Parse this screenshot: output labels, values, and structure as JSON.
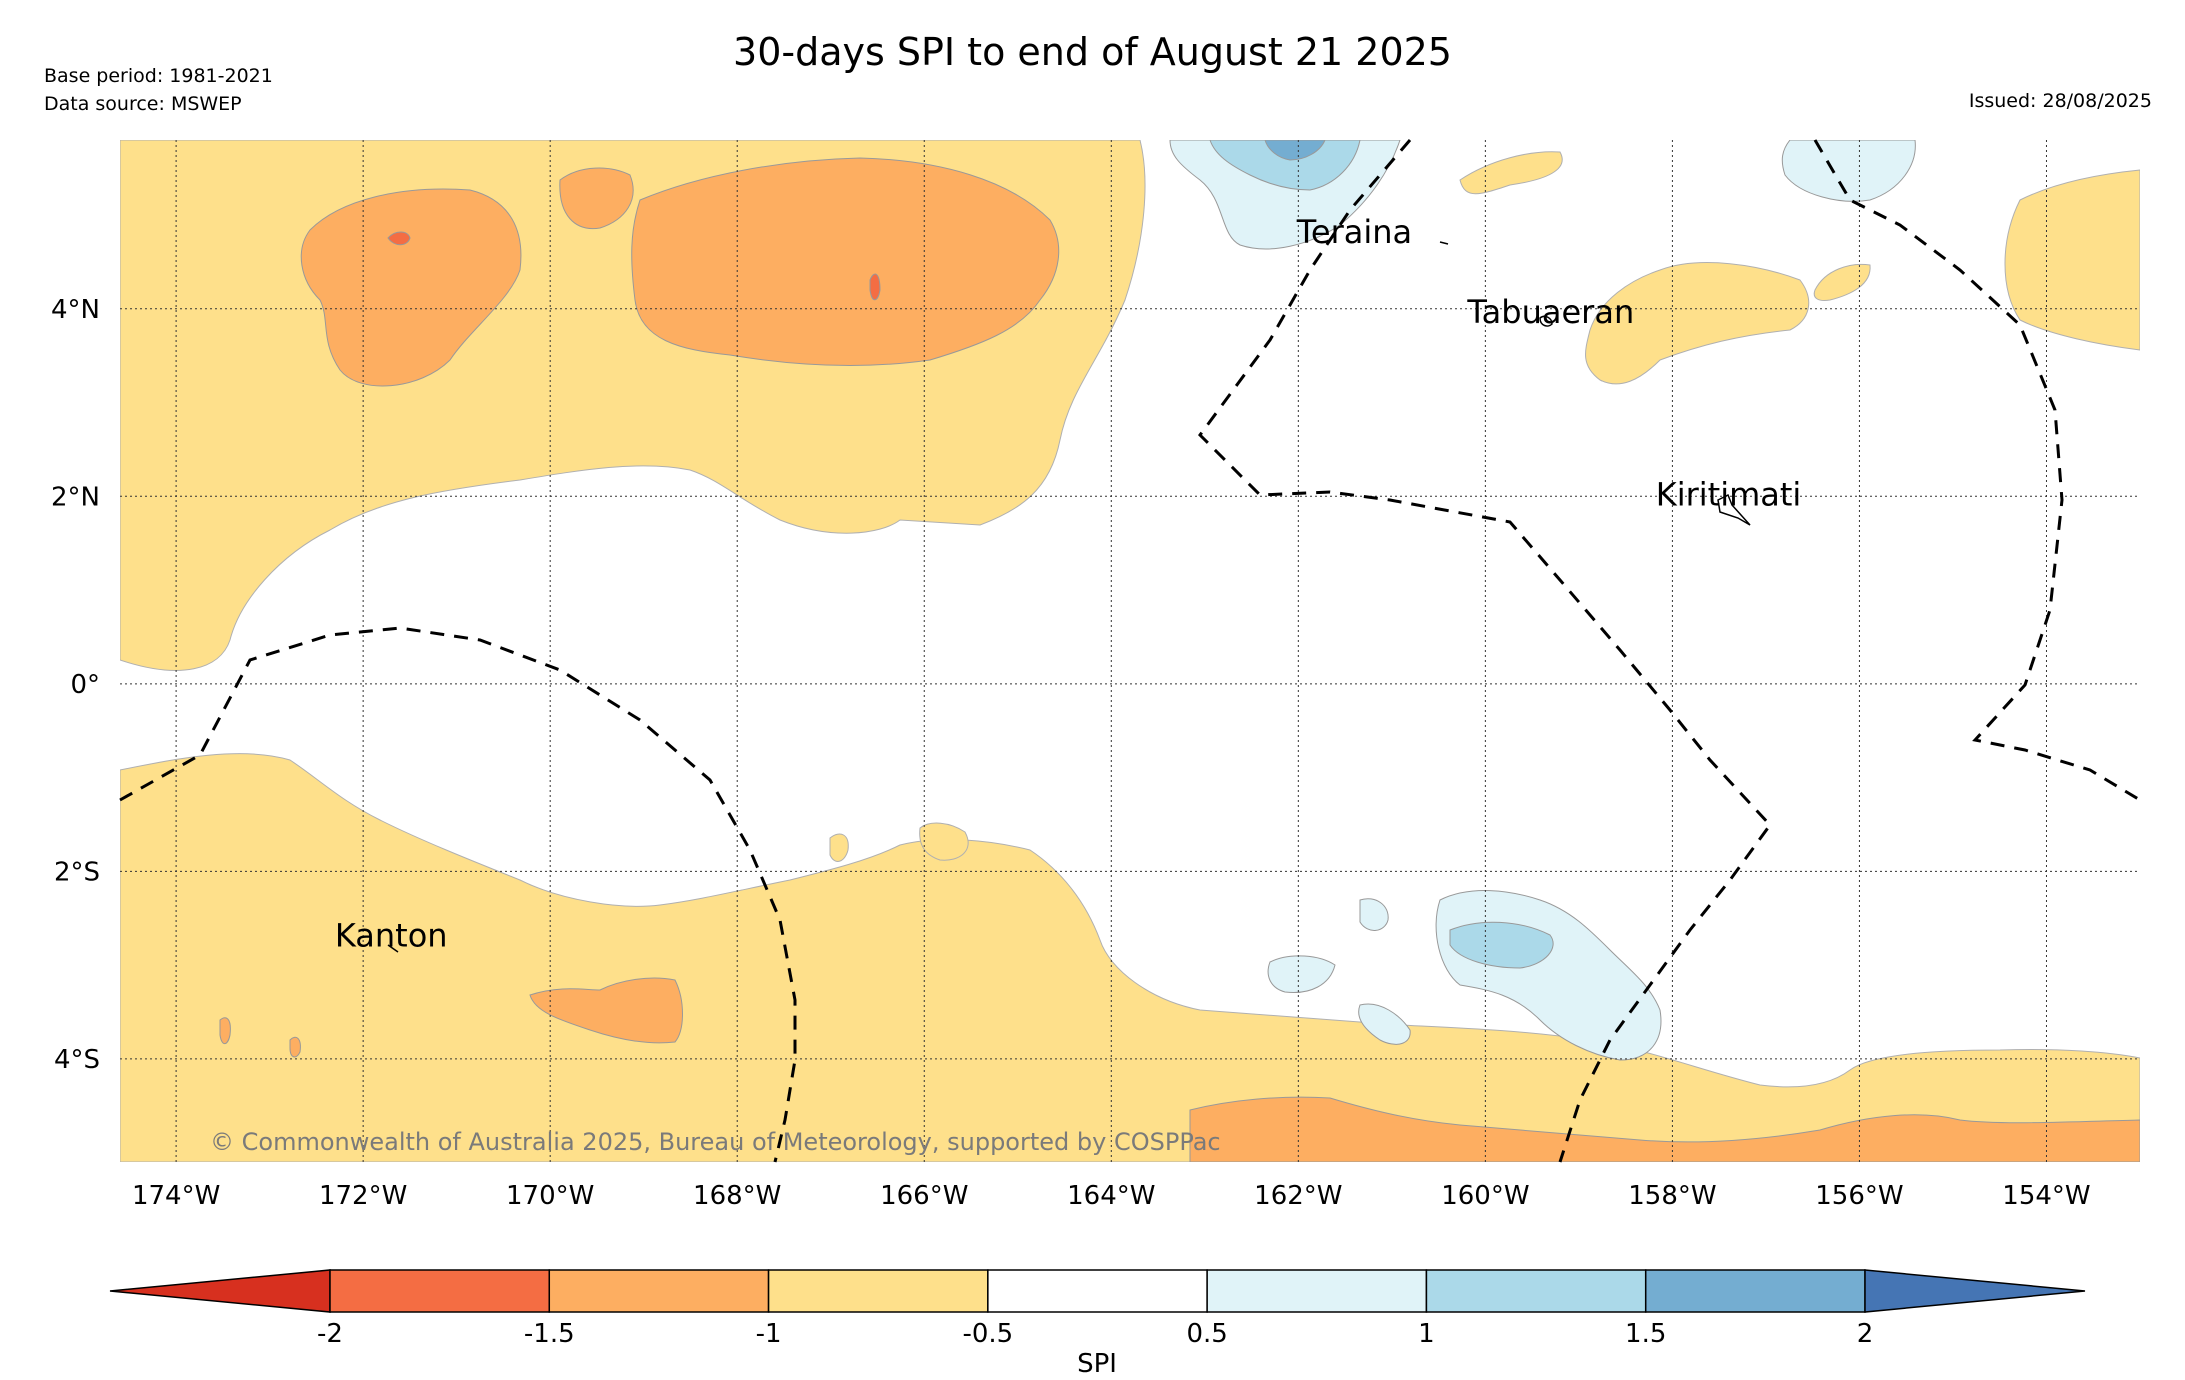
{
  "title": "30-days SPI to end of August 21 2025",
  "base_period": "Base period: 1981-2021",
  "data_source": "Data source: MSWEP",
  "issued": "Issued: 28/08/2025",
  "copyright": "© Commonwealth of Australia 2025, Bureau of Meteorology, supported by COSPPac",
  "map": {
    "lat_labels": [
      "4°N",
      "2°N",
      "0°",
      "2°S",
      "4°S"
    ],
    "lon_labels": [
      "174°W",
      "172°W",
      "170°W",
      "168°W",
      "166°W",
      "164°W",
      "162°W",
      "160°W",
      "158°W",
      "156°W",
      "154°W"
    ],
    "places": [
      {
        "name": "Teraina",
        "lon": -161.4,
        "lat": 4.7
      },
      {
        "name": "Tabuaeran",
        "lon": -159.3,
        "lat": 3.85
      },
      {
        "name": "Kiritimati",
        "lon": -157.4,
        "lat": 1.9
      },
      {
        "name": "Kanton",
        "lon": -171.7,
        "lat": -2.8
      }
    ]
  },
  "colorbar": {
    "label": "SPI",
    "ticks": [
      "-2",
      "-1.5",
      "-1",
      "-0.5",
      "0.5",
      "1",
      "1.5",
      "2"
    ],
    "colors": [
      "#d7301f",
      "#f46d43",
      "#fdae61",
      "#fee08b",
      "#ffffff",
      "#e0f3f8",
      "#abd9e9",
      "#74add1",
      "#4575b4"
    ]
  }
}
